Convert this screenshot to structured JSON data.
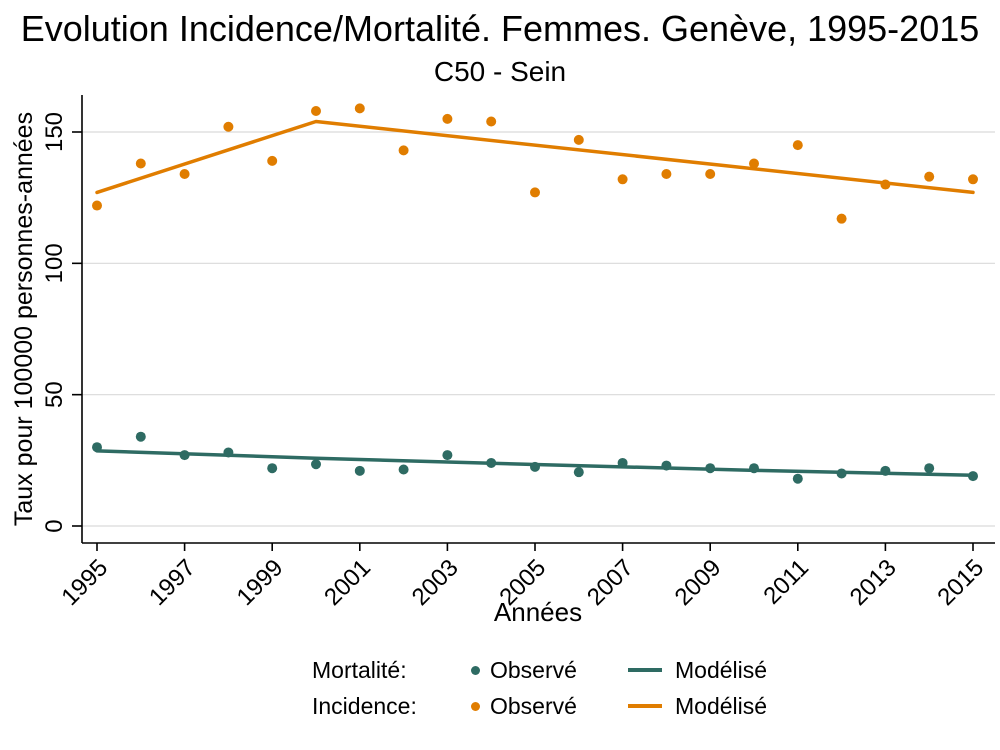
{
  "header": {
    "title": "Evolution Incidence/Mortalité. Femmes. Genève, 1995-2015",
    "subtitle": "C50 - Sein"
  },
  "axes": {
    "x_label": "Années",
    "y_label": "Taux pour 100000 personnes-années"
  },
  "legend": {
    "position": "bottom",
    "rows": [
      {
        "series": "Mortalité:",
        "observed": "Observé",
        "modeled": "Modélisé",
        "color": "#2e6b63"
      },
      {
        "series": "Incidence:",
        "observed": "Observé",
        "modeled": "Modélisé",
        "color": "#e07d00"
      }
    ]
  },
  "colors": {
    "mortality": "#2e6b63",
    "incidence": "#e07d00",
    "gridline": "#d9d9d9",
    "axis": "#000000",
    "background": "#ffffff"
  },
  "chart_data": {
    "type": "scatter+line",
    "title": "Evolution Incidence/Mortalité. Femmes. Genève, 1995-2015",
    "subtitle": "C50 - Sein",
    "xlabel": "Années",
    "ylabel": "Taux pour 100000 personnes-années",
    "xlim": [
      1994.7,
      2015.5
    ],
    "ylim": [
      0,
      164
    ],
    "grid": "horizontal",
    "x_ticks": [
      1995,
      1997,
      1999,
      2001,
      2003,
      2005,
      2007,
      2009,
      2011,
      2013,
      2015
    ],
    "y_ticks": [
      0,
      50,
      100,
      150
    ],
    "years": [
      1995,
      1996,
      1997,
      1998,
      1999,
      2000,
      2001,
      2002,
      2003,
      2004,
      2005,
      2006,
      2007,
      2008,
      2009,
      2010,
      2011,
      2012,
      2013,
      2014,
      2015
    ],
    "series": [
      {
        "name": "Mortalité Observé",
        "kind": "scatter",
        "color": "#2e6b63",
        "values": [
          30,
          34,
          27,
          28,
          22,
          23.5,
          21,
          21.5,
          27,
          24,
          22.5,
          20.5,
          24,
          23,
          22,
          22,
          18,
          20,
          21,
          22,
          19
        ]
      },
      {
        "name": "Mortalité Modélisé",
        "kind": "line",
        "color": "#2e6b63",
        "points": [
          [
            1995,
            28.6
          ],
          [
            2000,
            25.8
          ],
          [
            2005,
            23.4
          ],
          [
            2010,
            21.2
          ],
          [
            2015,
            19.3
          ]
        ]
      },
      {
        "name": "Incidence Observé",
        "kind": "scatter",
        "color": "#e07d00",
        "values": [
          122,
          138,
          134,
          152,
          139,
          158,
          159,
          143,
          155,
          154,
          127,
          147,
          132,
          134,
          134,
          138,
          145,
          117,
          130,
          133,
          132
        ]
      },
      {
        "name": "Incidence Modélisé",
        "kind": "line",
        "color": "#e07d00",
        "points": [
          [
            1995,
            127
          ],
          [
            2000,
            154
          ],
          [
            2015,
            127
          ]
        ]
      }
    ]
  }
}
